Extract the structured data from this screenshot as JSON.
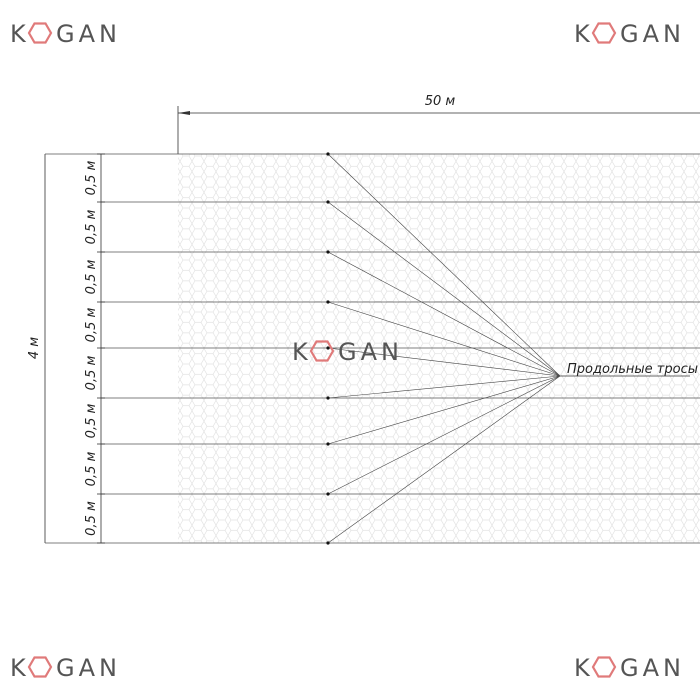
{
  "watermark": {
    "before": "K",
    "after": "GAN"
  },
  "drawing": {
    "length_label": "50 м",
    "height_label": "4 м",
    "segment_labels": [
      "0,5 м",
      "0,5 м",
      "0,5 м",
      "0,5 м",
      "0,5 м",
      "0,5 м",
      "0,5 м",
      "0,5 м"
    ],
    "callout": "Продольные тросы"
  }
}
